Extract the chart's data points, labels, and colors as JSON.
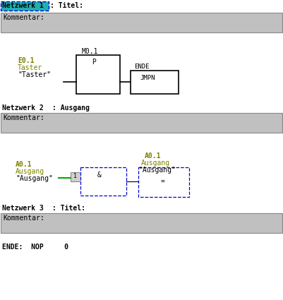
{
  "bg_color": "#ffffff",
  "gray_bg": "#c0c0c0",
  "title_bg": "#20b0b0",
  "olive": "#808000",
  "green": "#00aa00",
  "blue_dash": "#0000dd",
  "black": "#000000",
  "font_family": "monospace",
  "nw1_label": "Netzwerk 1",
  "nw1_title": ": Titel:",
  "kommentar": "Kommentar:",
  "nw2_label": "Netzwerk 2",
  "nw2_title": ": Ausgang",
  "nw3_label": "Netzwerk 3",
  "nw3_title": ": Titel:",
  "ende_line": "ENDE:  NOP     0",
  "figw": 4.01,
  "figh": 4.25,
  "dpi": 100
}
